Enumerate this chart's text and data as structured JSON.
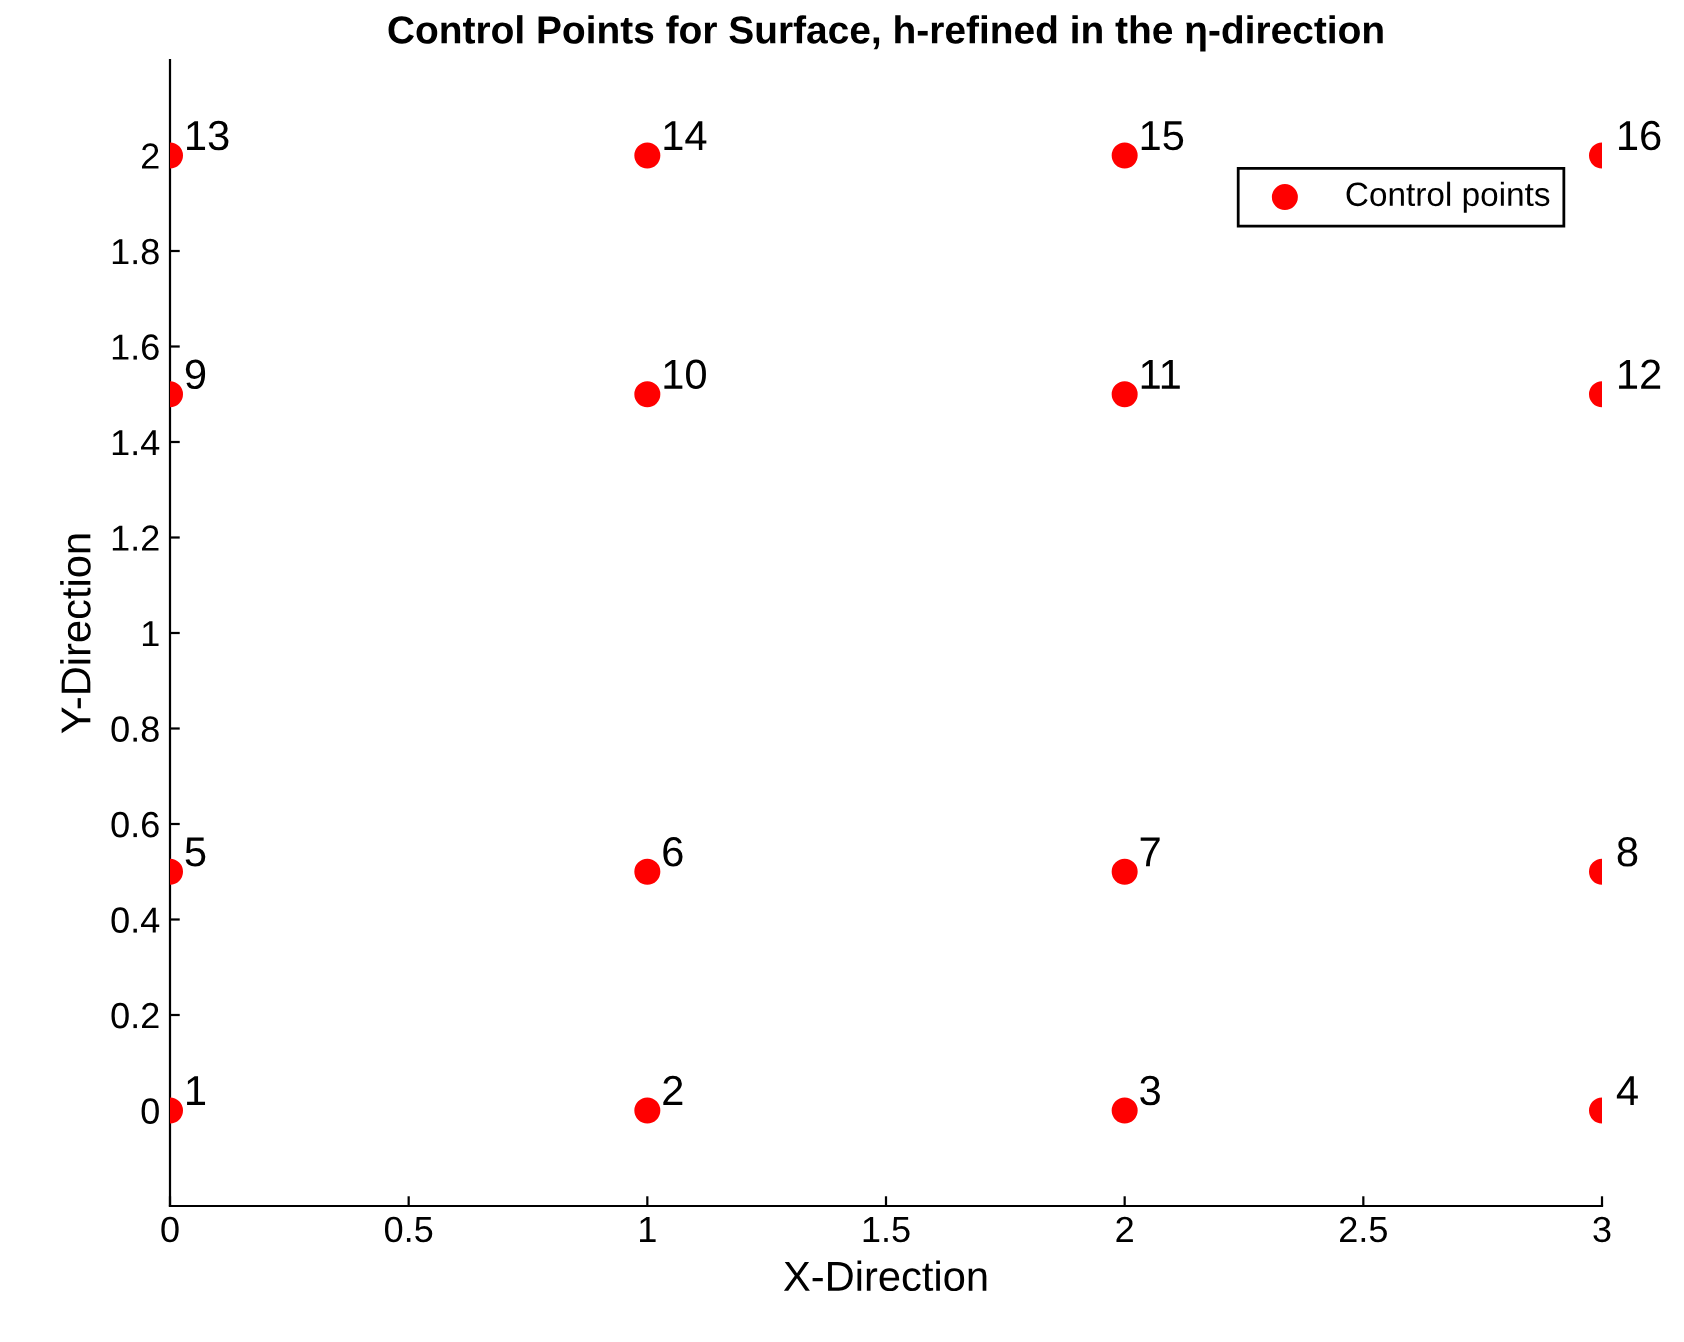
{
  "chart_data": {
    "type": "scatter",
    "title": "Control Points for Surface, h-refined in the η-direction",
    "xlabel": "X-Direction",
    "ylabel": "Y-Direction",
    "x": [
      0,
      1,
      2,
      3,
      0,
      1,
      2,
      3,
      0,
      1,
      2,
      3,
      0,
      1,
      2,
      3
    ],
    "series": [
      {
        "name": "Control points",
        "color": "#ff0000",
        "values": [
          0,
          0,
          0,
          0,
          0.5,
          0.5,
          0.5,
          0.5,
          1.5,
          1.5,
          1.5,
          1.5,
          2,
          2,
          2,
          2
        ]
      }
    ],
    "annotations": [
      {
        "text": "1",
        "x": 0,
        "y": 0
      },
      {
        "text": "2",
        "x": 1,
        "y": 0
      },
      {
        "text": "3",
        "x": 2,
        "y": 0
      },
      {
        "text": "4",
        "x": 3,
        "y": 0
      },
      {
        "text": "5",
        "x": 0,
        "y": 0.5
      },
      {
        "text": "6",
        "x": 1,
        "y": 0.5
      },
      {
        "text": "7",
        "x": 2,
        "y": 0.5
      },
      {
        "text": "8",
        "x": 3,
        "y": 0.5
      },
      {
        "text": "9",
        "x": 0,
        "y": 1.5
      },
      {
        "text": "10",
        "x": 1,
        "y": 1.5
      },
      {
        "text": "11",
        "x": 2,
        "y": 1.5
      },
      {
        "text": "12",
        "x": 3,
        "y": 1.5
      },
      {
        "text": "13",
        "x": 0,
        "y": 2
      },
      {
        "text": "14",
        "x": 1,
        "y": 2
      },
      {
        "text": "15",
        "x": 2,
        "y": 2
      },
      {
        "text": "16",
        "x": 3,
        "y": 2
      }
    ],
    "xlim": [
      0,
      3
    ],
    "ylim": [
      -0.2,
      2.2
    ],
    "xticks": [
      0,
      0.5,
      1,
      1.5,
      2,
      2.5,
      3
    ],
    "yticks": [
      0,
      0.2,
      0.4,
      0.6,
      0.8,
      1,
      1.2,
      1.4,
      1.6,
      1.8,
      2
    ],
    "marker": "circle",
    "legend": "top right",
    "grid": false
  }
}
